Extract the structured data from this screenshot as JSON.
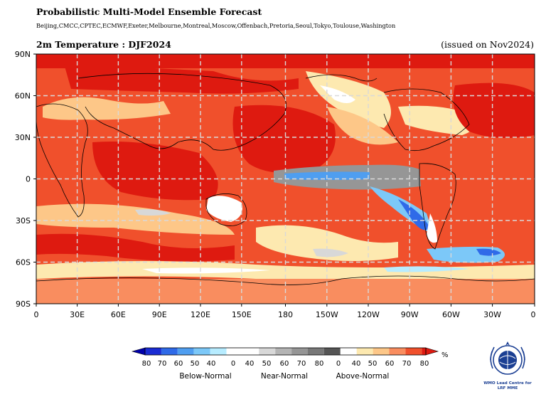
{
  "header": {
    "title": "Probabilistic Multi-Model Ensemble Forecast",
    "centres": "Beijing,CMCC,CPTEC,ECMWF,Exeter,Melbourne,Montreal,Moscow,Offenbach,Pretoria,Seoul,Tokyo,Toulouse,Washington",
    "variable": "2m Temperature : DJF2024",
    "issued": "(issued on Nov2024)"
  },
  "map": {
    "lat_ticks": [
      "90N",
      "60N",
      "30N",
      "0",
      "30S",
      "60S",
      "90S"
    ],
    "lon_ticks": [
      "0",
      "30E",
      "60E",
      "90E",
      "120E",
      "150E",
      "180",
      "150W",
      "120W",
      "90W",
      "60W",
      "30W",
      "0"
    ],
    "gridlines": "dashed"
  },
  "colorbar": {
    "unit": "%",
    "below_normal_colors": [
      "#1a2cd3",
      "#2f6ae8",
      "#4f9ef0",
      "#7cc8f8",
      "#b7ecff",
      "#ffffff"
    ],
    "near_normal_colors": [
      "#ffffff",
      "#d8d8d8",
      "#b4b4b4",
      "#969696",
      "#787878",
      "#555555"
    ],
    "above_normal_colors": [
      "#ffffff",
      "#fde9b0",
      "#fdc788",
      "#f98d5f",
      "#f0502c",
      "#de1a10"
    ],
    "below_ticks": [
      "80",
      "70",
      "60",
      "50",
      "40",
      "0"
    ],
    "near_ticks": [
      "40",
      "50",
      "60",
      "70",
      "80"
    ],
    "above_ticks": [
      "0",
      "40",
      "50",
      "60",
      "70",
      "80"
    ],
    "categories": [
      "Below-Normal",
      "Near-Normal",
      "Above-Normal"
    ]
  },
  "logo": {
    "line1": "WMO Lead Centre for",
    "line2": "LRF MME"
  }
}
